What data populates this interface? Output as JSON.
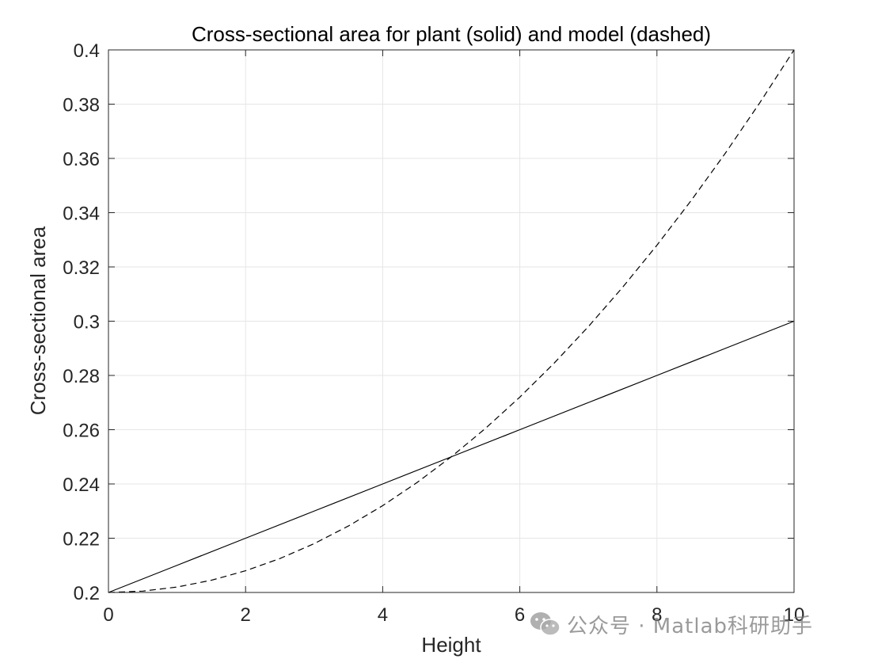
{
  "chart_data": {
    "type": "line",
    "title": "Cross-sectional area for plant (solid) and model (dashed)",
    "xlabel": "Height",
    "ylabel": "Cross-sectional area",
    "xlim": [
      0,
      10
    ],
    "ylim": [
      0.2,
      0.4
    ],
    "xticks": [
      0,
      2,
      4,
      6,
      8,
      10
    ],
    "xtick_labels": [
      "0",
      "2",
      "4",
      "6",
      "8",
      "10"
    ],
    "yticks": [
      0.2,
      0.22,
      0.24,
      0.26,
      0.28,
      0.3,
      0.32,
      0.34,
      0.36,
      0.38,
      0.4
    ],
    "ytick_labels": [
      "0.2",
      "0.22",
      "0.24",
      "0.26",
      "0.28",
      "0.3",
      "0.32",
      "0.34",
      "0.36",
      "0.38",
      "0.4"
    ],
    "grid": true,
    "series": [
      {
        "style": "solid",
        "color": "#000000",
        "x": [
          0,
          1,
          2,
          3,
          4,
          5,
          6,
          7,
          8,
          9,
          10
        ],
        "y": [
          0.2,
          0.21,
          0.22,
          0.23,
          0.24,
          0.25,
          0.26,
          0.27,
          0.28,
          0.29,
          0.3
        ]
      },
      {
        "style": "dashed",
        "color": "#000000",
        "x": [
          0,
          0.5,
          1,
          1.5,
          2,
          2.5,
          3,
          3.5,
          4,
          4.5,
          5,
          5.5,
          6,
          6.5,
          7,
          7.5,
          8,
          8.5,
          9,
          9.5,
          10
        ],
        "y": [
          0.2,
          0.2005,
          0.202,
          0.2045,
          0.208,
          0.2125,
          0.218,
          0.2245,
          0.232,
          0.2405,
          0.25,
          0.2605,
          0.272,
          0.2845,
          0.298,
          0.3125,
          0.328,
          0.3445,
          0.362,
          0.3805,
          0.4
        ]
      }
    ]
  },
  "watermark": {
    "icon": "wechat-icon",
    "text": "公众号 · Matlab科研助手"
  }
}
